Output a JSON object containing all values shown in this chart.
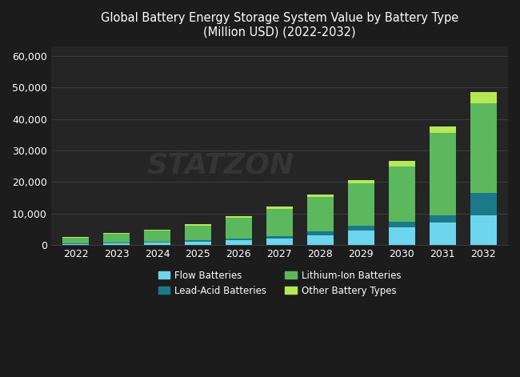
{
  "years": [
    "2022",
    "2023",
    "2024",
    "2025",
    "2026",
    "2027",
    "2028",
    "2029",
    "2030",
    "2031",
    "2032"
  ],
  "flow_batteries": [
    300,
    500,
    700,
    900,
    1400,
    2000,
    3000,
    4500,
    5500,
    7000,
    9500
  ],
  "lead_acid_batteries": [
    200,
    300,
    400,
    500,
    600,
    900,
    1200,
    1500,
    2000,
    2500,
    7000
  ],
  "lithium_ion_batteries": [
    1800,
    2800,
    3500,
    4800,
    6600,
    8500,
    11000,
    13500,
    17500,
    26000,
    28500
  ],
  "other_battery_types": [
    200,
    250,
    350,
    450,
    600,
    750,
    900,
    1100,
    1700,
    2200,
    3500
  ],
  "colors": {
    "flow_batteries": "#6dd5ed",
    "lead_acid_batteries": "#1a7a8a",
    "lithium_ion_batteries": "#5cb85c",
    "other_battery_types": "#b5e853"
  },
  "legend_labels": [
    "Flow Batteries",
    "Lead-Acid Batteries",
    "Lithium-Ion Batteries",
    "Other Battery Types"
  ],
  "title_line1": "Global Battery Energy Storage System Value by Battery Type",
  "title_line2": "(Million USD) (2022-2032)",
  "background_color": "#1c1c1c",
  "plot_bg_color": "#252525",
  "grid_color": "#444444",
  "text_color": "#ffffff",
  "yticks": [
    0,
    10000,
    20000,
    30000,
    40000,
    50000,
    60000
  ],
  "ylim": [
    0,
    63000
  ],
  "watermark_text": "STATZON",
  "watermark_color": "#404040",
  "watermark_alpha": 0.6
}
